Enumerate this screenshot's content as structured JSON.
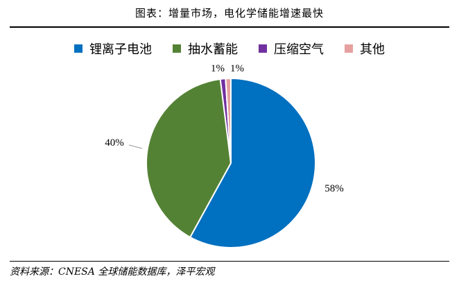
{
  "figure_title": "图表：增量市场，电化学储能增速最快",
  "source": "资料来源：CNESA 全球储能数据库，泽平宏观",
  "chart_data": {
    "type": "pie",
    "title": "",
    "legend_position": "top",
    "start_angle": "12 o'clock, clockwise",
    "slices": [
      {
        "label": "锂离子电池",
        "value": 58,
        "display": "58%",
        "color": "#0070c0"
      },
      {
        "label": "抽水蓄能",
        "value": 40,
        "display": "40%",
        "color": "#548235"
      },
      {
        "label": "压缩空气",
        "value": 1,
        "display": "1%",
        "color": "#7030a0"
      },
      {
        "label": "其他",
        "value": 1,
        "display": "1%",
        "color": "#e6a0a0"
      }
    ]
  }
}
